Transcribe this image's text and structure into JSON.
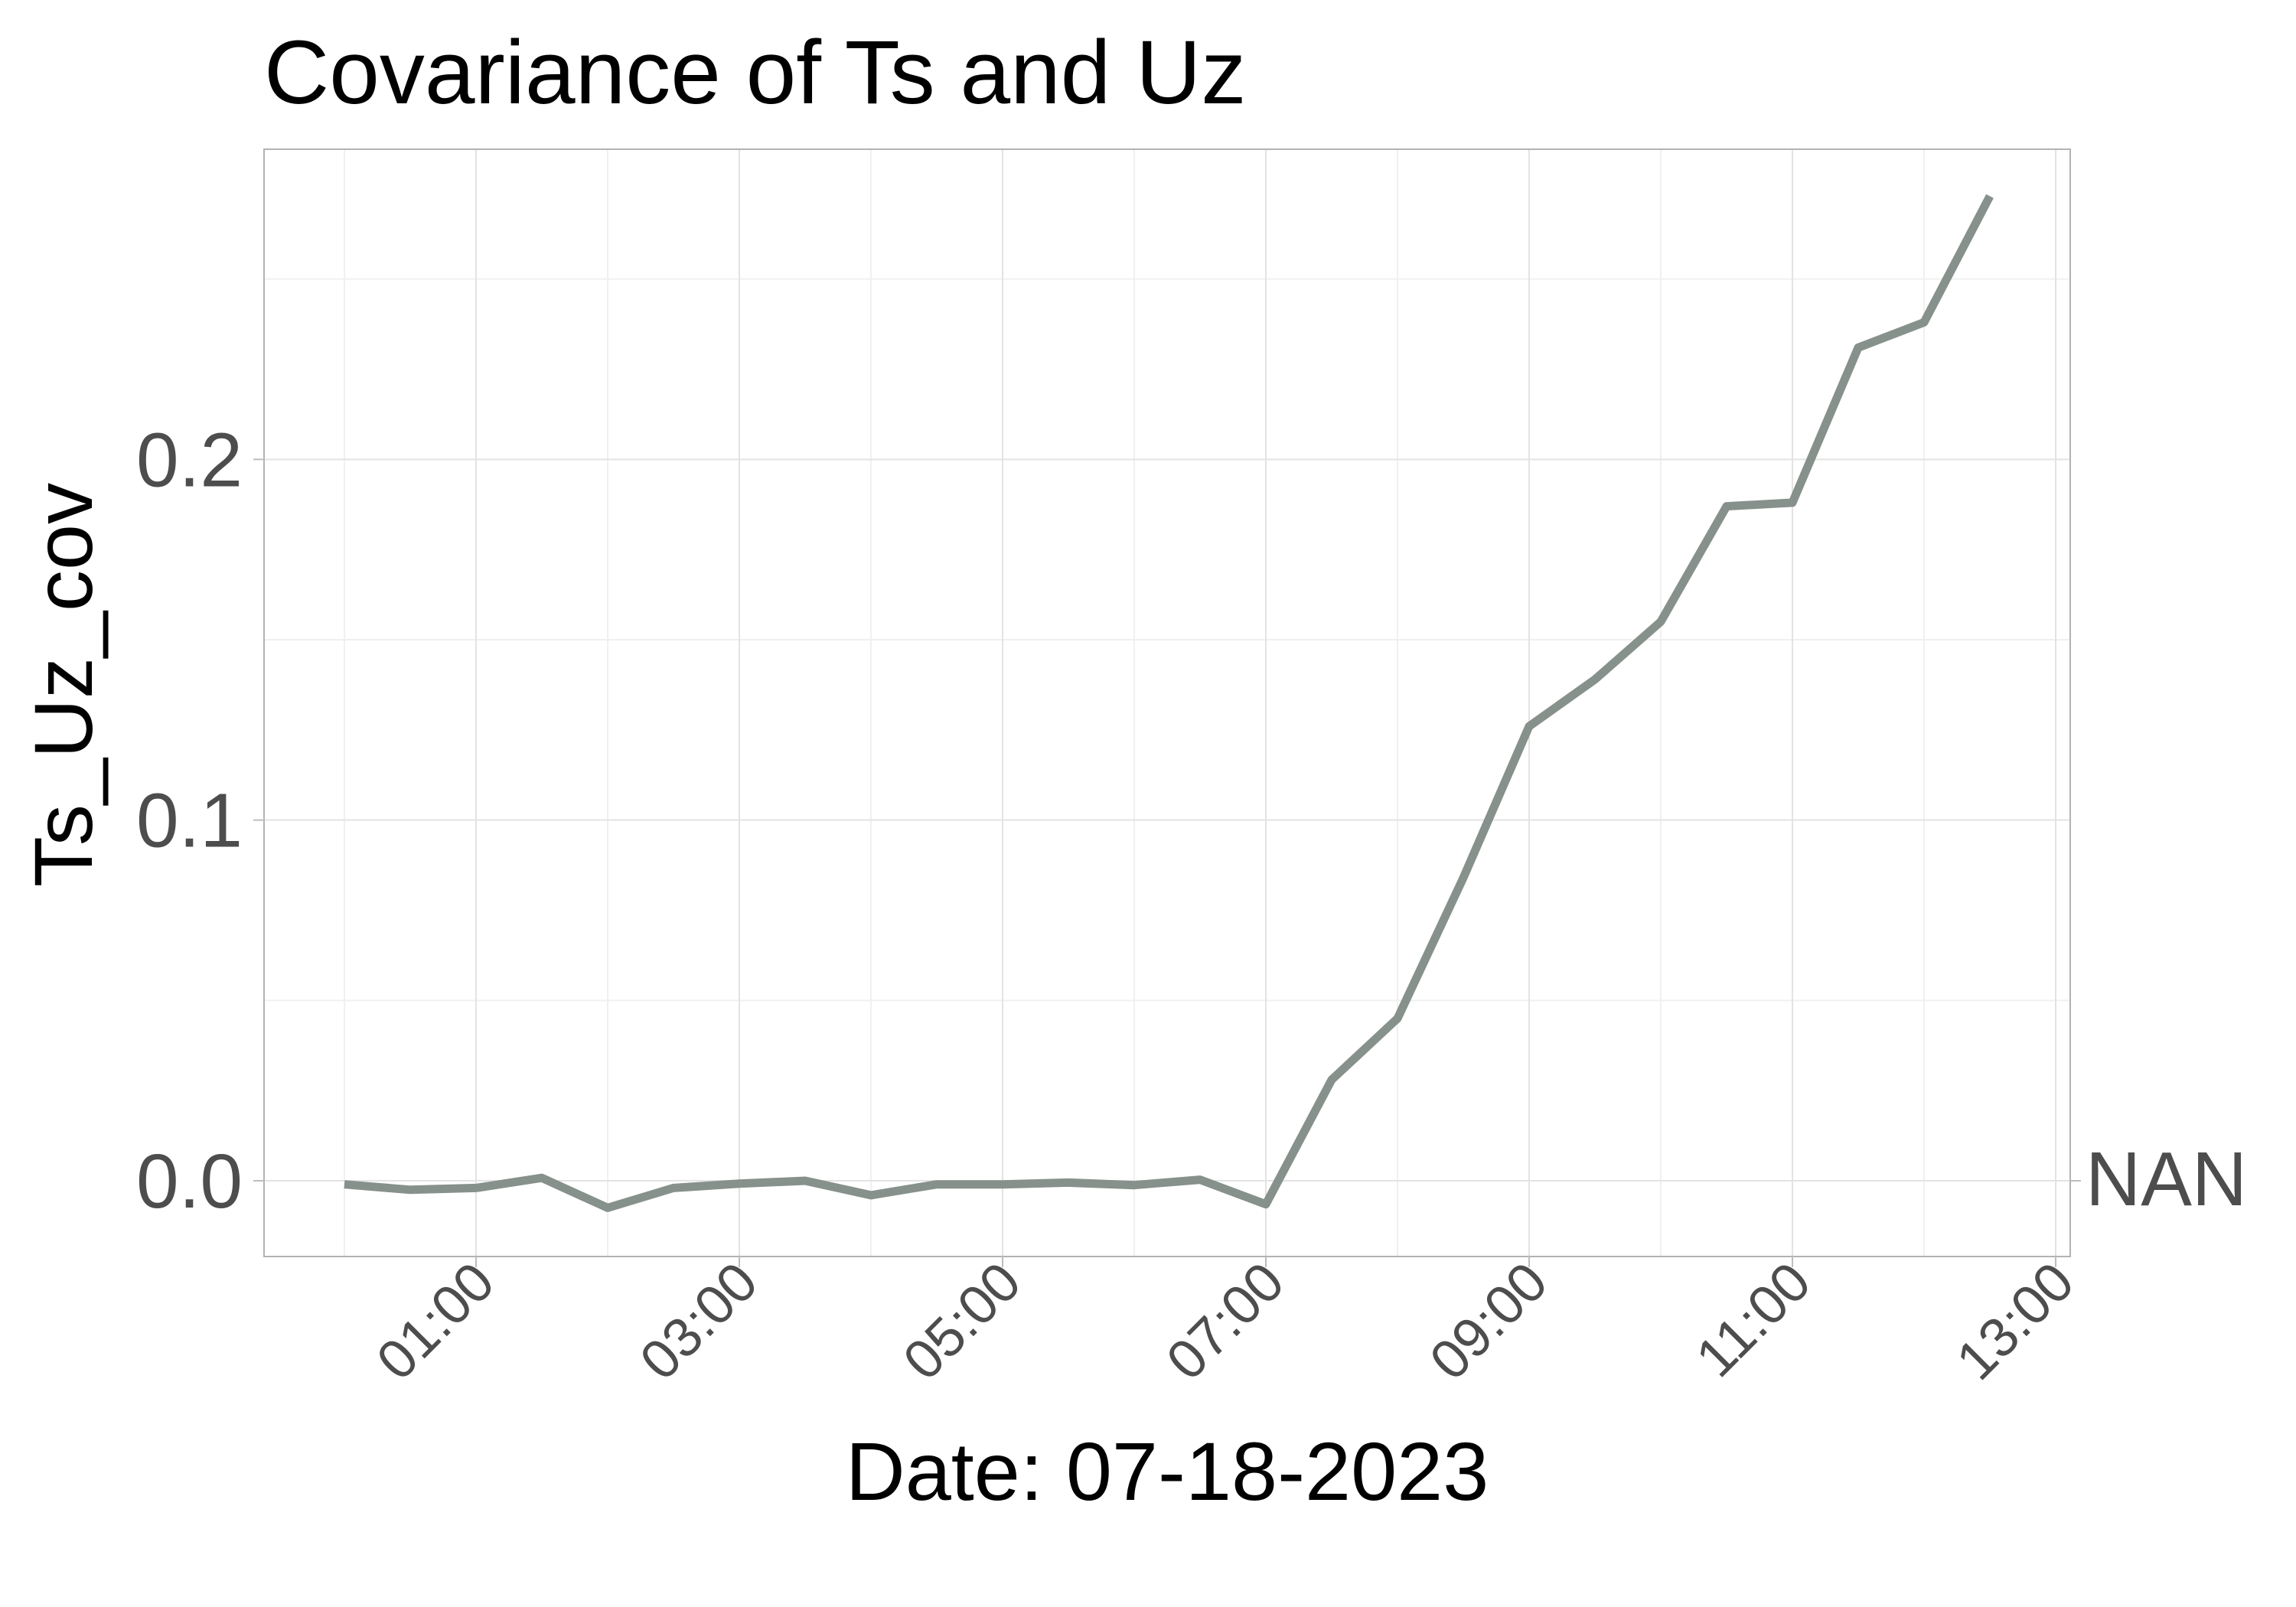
{
  "chart_data": {
    "type": "line",
    "title": "Covariance of Ts and Uz",
    "xlabel": "Date: 07-18-2023",
    "ylabel": "Ts_Uz_cov",
    "x_ticks": [
      "01:00",
      "03:00",
      "05:00",
      "07:00",
      "09:00",
      "11:00",
      "13:00"
    ],
    "y_ticks": [
      "0.0",
      "0.1",
      "0.2"
    ],
    "xlim": [
      "00:00",
      "13:00"
    ],
    "ylim": [
      -0.021,
      0.286
    ],
    "grid": true,
    "annotation": "NAN",
    "line_color": "#87918c",
    "series": [
      {
        "x": [
          "00:00",
          "00:30",
          "01:00",
          "01:30",
          "02:00",
          "02:30",
          "03:00",
          "03:30",
          "04:00",
          "04:30",
          "05:00",
          "05:30",
          "06:00",
          "06:30",
          "07:00",
          "07:30",
          "08:00",
          "08:30",
          "09:00",
          "09:30",
          "10:00",
          "10:30",
          "11:00",
          "11:30",
          "12:00",
          "12:30"
        ],
        "values": [
          -0.001,
          -0.0025,
          -0.002,
          0.0008,
          -0.0075,
          -0.002,
          -0.0008,
          0.0,
          -0.004,
          -0.001,
          -0.001,
          -0.0005,
          -0.0012,
          0.0003,
          -0.0065,
          0.028,
          0.045,
          0.084,
          0.126,
          0.139,
          0.155,
          0.187,
          0.188,
          0.231,
          0.238,
          0.273
        ]
      }
    ]
  }
}
